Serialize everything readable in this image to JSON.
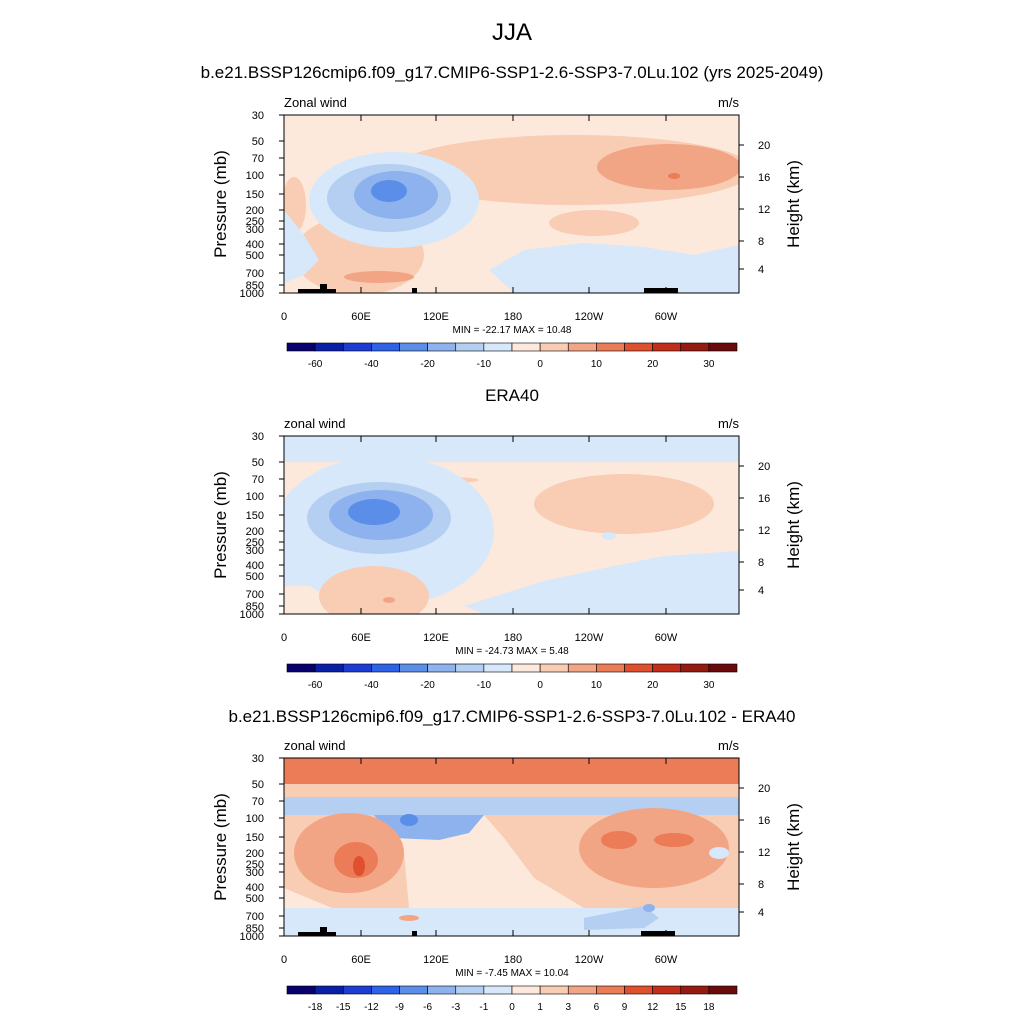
{
  "main_title": "JJA",
  "panels": [
    {
      "title": "b.e21.BSSP126cmip6.f09_g17.CMIP6-SSP1-2.6-SSP3-7.0Lu.102 (yrs 2025-2049)",
      "left_label": "Zonal wind",
      "units": "m/s",
      "stats": "MIN = -22.17  MAX =  10.48",
      "colorbar_labels": [
        "-60",
        "-40",
        "-20",
        "-10",
        "0",
        "10",
        "20",
        "30"
      ]
    },
    {
      "title": "ERA40",
      "left_label": "zonal wind",
      "units": "m/s",
      "stats": "MIN = -24.73  MAX =   5.48",
      "colorbar_labels": [
        "-60",
        "-40",
        "-20",
        "-10",
        "0",
        "10",
        "20",
        "30"
      ]
    },
    {
      "title": "b.e21.BSSP126cmip6.f09_g17.CMIP6-SSP1-2.6-SSP3-7.0Lu.102 - ERA40",
      "left_label": "zonal wind",
      "units": "m/s",
      "stats": "MIN =  -7.45  MAX =  10.04",
      "colorbar_labels": [
        "-18",
        "-15",
        "-12",
        "-9",
        "-6",
        "-3",
        "-1",
        "0",
        "1",
        "3",
        "6",
        "9",
        "12",
        "15",
        "18"
      ]
    }
  ],
  "axes": {
    "x_ticks": [
      "0",
      "60E",
      "120E",
      "180",
      "120W",
      "60W"
    ],
    "y_left_label": "Pressure (mb)",
    "y_left_ticks": [
      "30",
      "50",
      "70",
      "100",
      "150",
      "200",
      "250",
      "300",
      "400",
      "500",
      "700",
      "850",
      "1000"
    ],
    "y_right_label": "Height (km)",
    "y_right_ticks": [
      "20",
      "16",
      "12",
      "8",
      "4"
    ]
  },
  "colors": {
    "colormap": [
      "#08006c",
      "#0a1fa8",
      "#1c3cd4",
      "#2e62e8",
      "#5a8ee8",
      "#8eb2ee",
      "#b5cff3",
      "#d6e8fa",
      "#fde9db",
      "#f9ccb4",
      "#f2a585",
      "#ec7b57",
      "#e0502f",
      "#c32e1a",
      "#951a11",
      "#6b0a0a"
    ]
  },
  "chart_data": [
    {
      "type": "heatmap",
      "title": "b.e21.BSSP126cmip6.f09_g17.CMIP6-SSP1-2.6-SSP3-7.0Lu.102 (yrs 2025-2049)",
      "variable": "Zonal wind",
      "units": "m/s",
      "x_axis": [
        "0",
        "60E",
        "120E",
        "180",
        "120W",
        "60W"
      ],
      "ylabel": "Pressure (mb)",
      "ylabel_right": "Height (km)",
      "min": -22.17,
      "max": 10.48,
      "levels": [
        -70,
        -60,
        -50,
        -40,
        -30,
        -20,
        -15,
        -10,
        -5,
        0,
        5,
        10,
        15,
        20,
        25,
        30,
        35
      ]
    },
    {
      "type": "heatmap",
      "title": "ERA40",
      "variable": "zonal wind",
      "units": "m/s",
      "x_axis": [
        "0",
        "60E",
        "120E",
        "180",
        "120W",
        "60W"
      ],
      "ylabel": "Pressure (mb)",
      "ylabel_right": "Height (km)",
      "min": -24.73,
      "max": 5.48,
      "levels": [
        -70,
        -60,
        -50,
        -40,
        -30,
        -20,
        -15,
        -10,
        -5,
        0,
        5,
        10,
        15,
        20,
        25,
        30,
        35
      ]
    },
    {
      "type": "heatmap",
      "title": "b.e21.BSSP126cmip6.f09_g17.CMIP6-SSP1-2.6-SSP3-7.0Lu.102 - ERA40",
      "variable": "zonal wind",
      "units": "m/s",
      "x_axis": [
        "0",
        "60E",
        "120E",
        "180",
        "120W",
        "60W"
      ],
      "ylabel": "Pressure (mb)",
      "ylabel_right": "Height (km)",
      "min": -7.45,
      "max": 10.04,
      "levels": [
        -21,
        -18,
        -15,
        -12,
        -9,
        -6,
        -3,
        -1,
        0,
        1,
        3,
        6,
        9,
        12,
        15,
        18,
        21
      ]
    }
  ]
}
